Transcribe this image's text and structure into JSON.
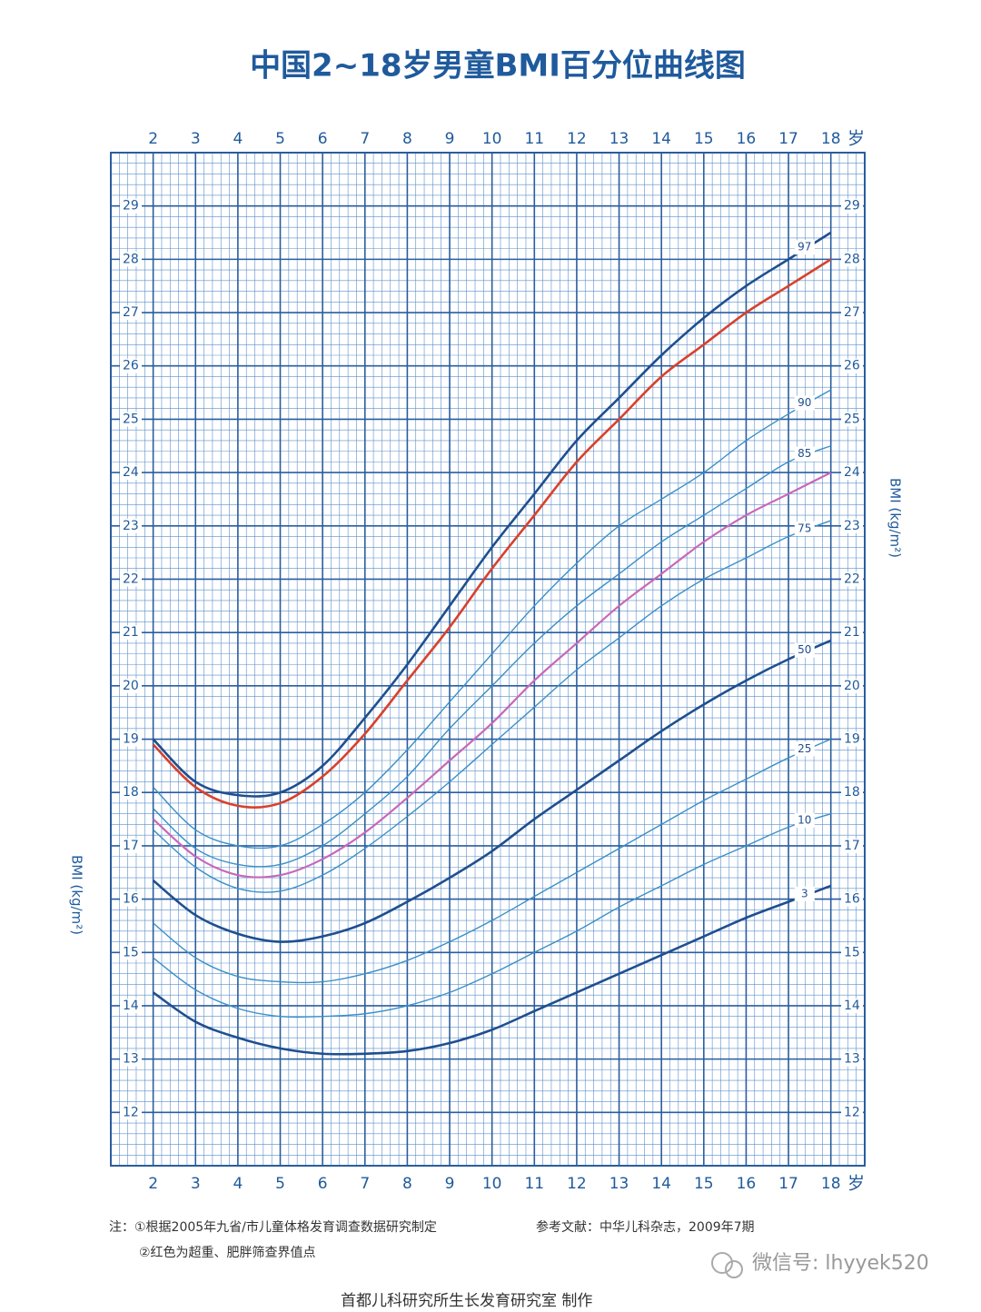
{
  "chart_data": {
    "type": "line",
    "title": "中国2~18岁男童BMI百分位曲线图",
    "y_label": "BMI (kg/m²)",
    "x_unit": "岁",
    "x": [
      2,
      3,
      4,
      5,
      6,
      7,
      8,
      9,
      10,
      11,
      12,
      13,
      14,
      15,
      16,
      17,
      18
    ],
    "xlim": [
      1.0,
      18.8
    ],
    "xticks": [
      2,
      3,
      4,
      5,
      6,
      7,
      8,
      9,
      10,
      11,
      12,
      13,
      14,
      15,
      16,
      17,
      18
    ],
    "ylim": [
      11.0,
      30.0
    ],
    "yticks": [
      12,
      13,
      14,
      15,
      16,
      17,
      18,
      19,
      20,
      21,
      22,
      23,
      24,
      25,
      26,
      27,
      28,
      29
    ],
    "grid": true,
    "series": [
      {
        "name": "97",
        "color": "#1f4f8f",
        "width": 2.6,
        "values": [
          19.0,
          18.2,
          17.95,
          18.0,
          18.5,
          19.4,
          20.4,
          21.5,
          22.6,
          23.6,
          24.6,
          25.4,
          26.2,
          26.9,
          27.5,
          28.0,
          28.5
        ]
      },
      {
        "color": "#d8412c",
        "width": 2.6,
        "values": [
          18.9,
          18.1,
          17.75,
          17.8,
          18.3,
          19.1,
          20.1,
          21.1,
          22.2,
          23.2,
          24.2,
          25.0,
          25.8,
          26.4,
          27.0,
          27.5,
          28.0
        ]
      },
      {
        "name": "90",
        "color": "#3a8fc8",
        "width": 1.4,
        "values": [
          18.1,
          17.3,
          17.0,
          17.0,
          17.4,
          18.0,
          18.8,
          19.7,
          20.6,
          21.5,
          22.3,
          23.0,
          23.5,
          24.0,
          24.6,
          25.1,
          25.55
        ]
      },
      {
        "name": "85",
        "color": "#3a8fc8",
        "width": 1.4,
        "values": [
          17.7,
          16.95,
          16.65,
          16.65,
          17.0,
          17.6,
          18.3,
          19.2,
          20.0,
          20.8,
          21.5,
          22.1,
          22.7,
          23.2,
          23.7,
          24.2,
          24.5
        ]
      },
      {
        "color": "#c867b9",
        "width": 2.2,
        "values": [
          17.5,
          16.8,
          16.45,
          16.45,
          16.75,
          17.25,
          17.9,
          18.6,
          19.3,
          20.1,
          20.8,
          21.5,
          22.1,
          22.7,
          23.2,
          23.6,
          24.0
        ]
      },
      {
        "name": "75",
        "color": "#3a8fc8",
        "width": 1.4,
        "values": [
          17.3,
          16.6,
          16.2,
          16.15,
          16.45,
          16.95,
          17.55,
          18.2,
          18.9,
          19.6,
          20.3,
          20.9,
          21.5,
          22.0,
          22.4,
          22.8,
          23.1
        ]
      },
      {
        "name": "50",
        "color": "#1f4f8f",
        "width": 2.6,
        "values": [
          16.35,
          15.7,
          15.35,
          15.2,
          15.3,
          15.55,
          15.95,
          16.4,
          16.9,
          17.5,
          18.05,
          18.6,
          19.15,
          19.65,
          20.1,
          20.5,
          20.85
        ]
      },
      {
        "name": "25",
        "color": "#3a8fc8",
        "width": 1.4,
        "values": [
          15.55,
          14.9,
          14.55,
          14.45,
          14.45,
          14.6,
          14.85,
          15.2,
          15.6,
          16.05,
          16.5,
          16.95,
          17.4,
          17.85,
          18.25,
          18.65,
          19.0
        ]
      },
      {
        "name": "10",
        "color": "#3a8fc8",
        "width": 1.4,
        "values": [
          14.9,
          14.3,
          13.95,
          13.8,
          13.8,
          13.85,
          14.0,
          14.25,
          14.6,
          15.0,
          15.4,
          15.85,
          16.25,
          16.65,
          17.0,
          17.35,
          17.6
        ]
      },
      {
        "name": "3",
        "color": "#1f4f8f",
        "width": 2.6,
        "values": [
          14.25,
          13.7,
          13.4,
          13.2,
          13.1,
          13.1,
          13.15,
          13.3,
          13.55,
          13.9,
          14.25,
          14.6,
          14.95,
          15.3,
          15.65,
          15.95,
          16.25
        ]
      }
    ]
  },
  "footer": {
    "notes": [
      "注：①根据2005年九省/市儿童体格发育调查数据研究制定",
      "②红色为超重、肥胖筛查界值点"
    ],
    "reference": "参考文献：中华儿科杂志，2009年7期",
    "credit": "首都儿科研究所生长发育研究室 制作",
    "watermark": "微信号: lhyyek520"
  }
}
